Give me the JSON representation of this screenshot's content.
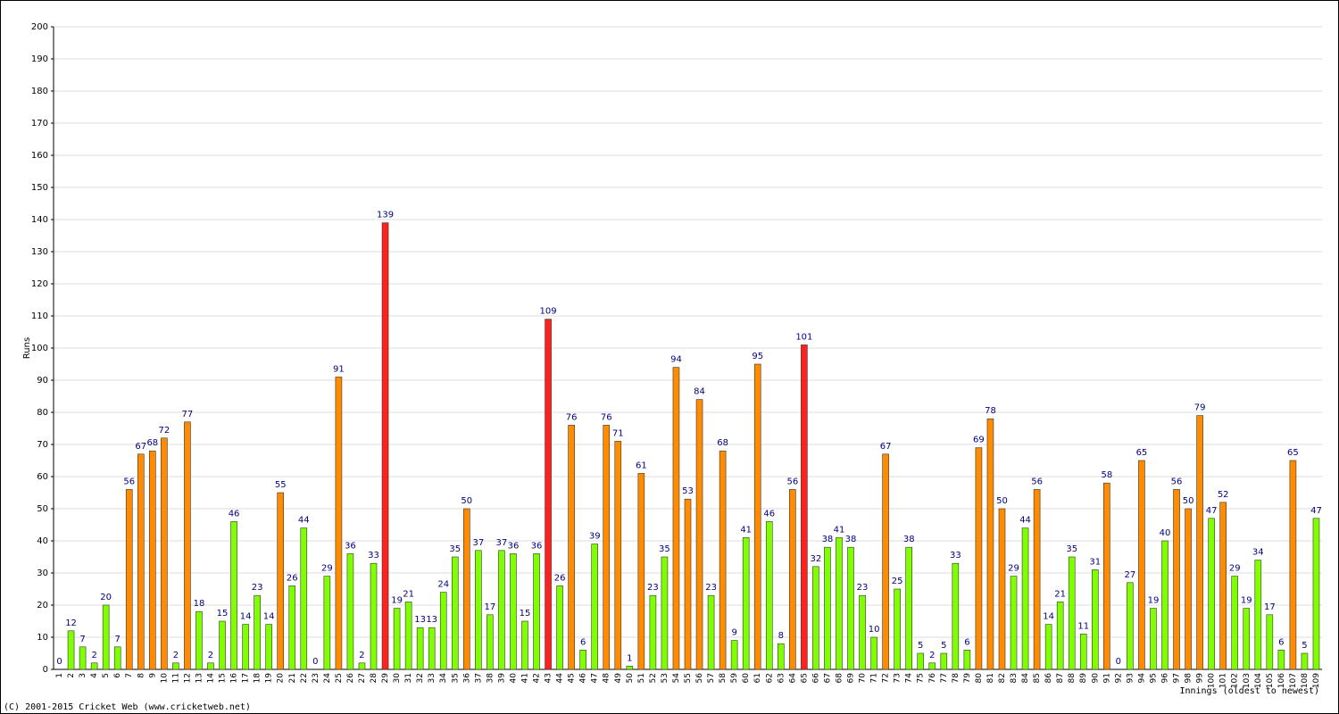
{
  "chart_data": {
    "type": "bar",
    "y_label": "Runs",
    "x_label": "Innings (oldest to newest)",
    "footer": "(C) 2001-2015 Cricket Web (www.cricketweb.net)",
    "categories": [
      1,
      2,
      3,
      4,
      5,
      6,
      7,
      8,
      9,
      10,
      11,
      12,
      13,
      14,
      15,
      16,
      17,
      18,
      19,
      20,
      21,
      22,
      23,
      24,
      25,
      26,
      27,
      28,
      29,
      30,
      31,
      32,
      33,
      34,
      35,
      36,
      37,
      38,
      39,
      40,
      41,
      42,
      43,
      44,
      45,
      46,
      47,
      48,
      49,
      50,
      51,
      52,
      53,
      54,
      55,
      56,
      57,
      58,
      59,
      60,
      61,
      62,
      63,
      64,
      65,
      66,
      67,
      68,
      69,
      70,
      71,
      72,
      73,
      74,
      75,
      76,
      77,
      78,
      79,
      80,
      81,
      82,
      83,
      84,
      85,
      86,
      87,
      88,
      89,
      90,
      91,
      92,
      93,
      94,
      95,
      96,
      97,
      98,
      99,
      100,
      101,
      102,
      103,
      104,
      105,
      106,
      107,
      108,
      109
    ],
    "values": [
      0,
      12,
      7,
      2,
      20,
      7,
      56,
      67,
      68,
      72,
      2,
      77,
      18,
      2,
      15,
      46,
      14,
      23,
      14,
      55,
      26,
      44,
      0,
      29,
      91,
      36,
      2,
      33,
      139,
      19,
      21,
      13,
      13,
      24,
      35,
      50,
      37,
      17,
      37,
      36,
      15,
      36,
      109,
      26,
      76,
      6,
      39,
      76,
      71,
      1,
      61,
      23,
      35,
      94,
      53,
      84,
      23,
      68,
      9,
      41,
      95,
      46,
      8,
      56,
      101,
      32,
      38,
      41,
      38,
      23,
      10,
      67,
      25,
      38,
      5,
      2,
      5,
      33,
      6,
      69,
      78,
      50,
      29,
      44,
      56,
      14,
      21,
      35,
      11,
      31,
      58,
      0,
      27,
      65,
      19,
      40,
      56,
      50,
      79,
      47,
      52,
      29,
      19,
      34,
      17,
      6,
      65,
      5,
      47
    ],
    "colors": [
      "#80ff00",
      "#80ff00",
      "#80ff00",
      "#80ff00",
      "#80ff00",
      "#80ff00",
      "#ff8c00",
      "#ff8c00",
      "#ff8c00",
      "#ff8c00",
      "#80ff00",
      "#ff8c00",
      "#80ff00",
      "#80ff00",
      "#80ff00",
      "#80ff00",
      "#80ff00",
      "#80ff00",
      "#80ff00",
      "#ff8c00",
      "#80ff00",
      "#80ff00",
      "#80ff00",
      "#80ff00",
      "#ff8c00",
      "#80ff00",
      "#80ff00",
      "#80ff00",
      "#ff2020",
      "#80ff00",
      "#80ff00",
      "#80ff00",
      "#80ff00",
      "#80ff00",
      "#80ff00",
      "#ff8c00",
      "#80ff00",
      "#80ff00",
      "#80ff00",
      "#80ff00",
      "#80ff00",
      "#80ff00",
      "#ff2020",
      "#80ff00",
      "#ff8c00",
      "#80ff00",
      "#80ff00",
      "#ff8c00",
      "#ff8c00",
      "#80ff00",
      "#ff8c00",
      "#80ff00",
      "#80ff00",
      "#ff8c00",
      "#ff8c00",
      "#ff8c00",
      "#80ff00",
      "#ff8c00",
      "#80ff00",
      "#80ff00",
      "#ff8c00",
      "#80ff00",
      "#80ff00",
      "#ff8c00",
      "#ff2020",
      "#80ff00",
      "#80ff00",
      "#80ff00",
      "#80ff00",
      "#80ff00",
      "#80ff00",
      "#ff8c00",
      "#80ff00",
      "#80ff00",
      "#80ff00",
      "#80ff00",
      "#80ff00",
      "#80ff00",
      "#80ff00",
      "#ff8c00",
      "#ff8c00",
      "#ff8c00",
      "#80ff00",
      "#80ff00",
      "#ff8c00",
      "#80ff00",
      "#80ff00",
      "#80ff00",
      "#80ff00",
      "#80ff00",
      "#ff8c00",
      "#80ff00",
      "#80ff00",
      "#ff8c00",
      "#80ff00",
      "#80ff00",
      "#ff8c00",
      "#ff8c00",
      "#ff8c00",
      "#80ff00",
      "#ff8c00",
      "#80ff00",
      "#80ff00",
      "#80ff00",
      "#80ff00",
      "#80ff00",
      "#ff8c00",
      "#80ff00",
      "#80ff00"
    ],
    "ylim": [
      0,
      200
    ],
    "yticks": [
      0,
      10,
      20,
      30,
      40,
      50,
      60,
      70,
      80,
      90,
      100,
      110,
      120,
      130,
      140,
      150,
      160,
      170,
      180,
      190,
      200
    ],
    "grid": true
  }
}
